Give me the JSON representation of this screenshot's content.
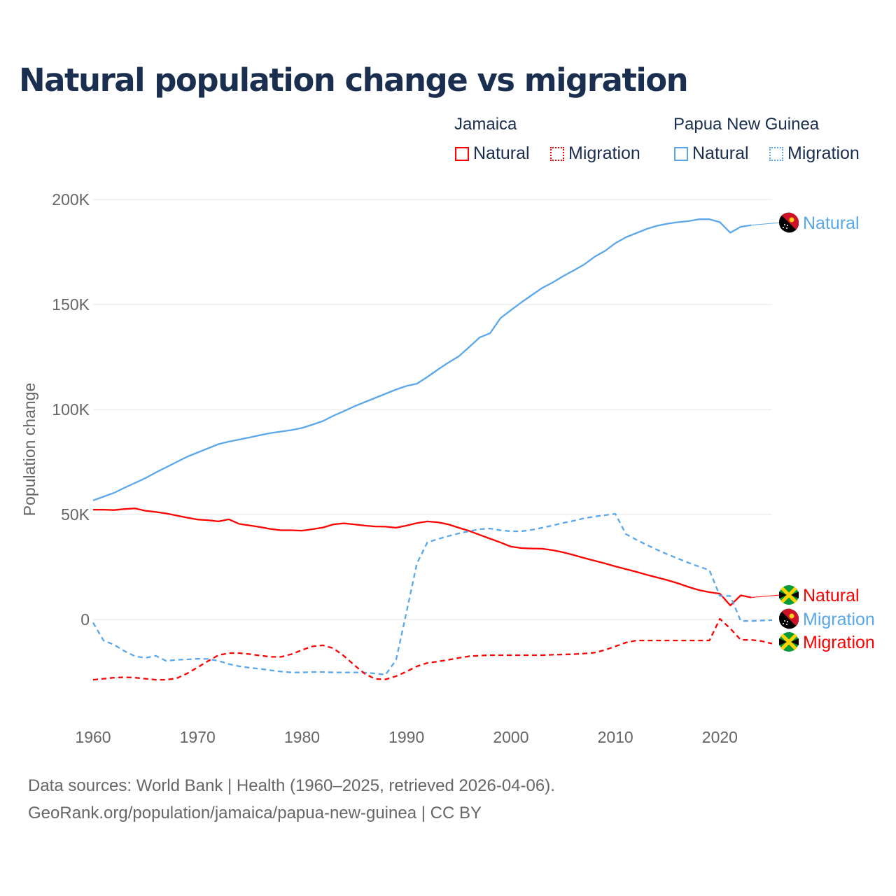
{
  "title": "Natural population change vs migration",
  "legend": {
    "groups": [
      {
        "name": "Jamaica",
        "items": [
          {
            "label": "Natural",
            "color": "#ff0000",
            "style": "solid"
          },
          {
            "label": "Migration",
            "color": "#ff0000",
            "style": "dotted"
          }
        ]
      },
      {
        "name": "Papua New Guinea",
        "items": [
          {
            "label": "Natural",
            "color": "#5aa7ec",
            "style": "solid"
          },
          {
            "label": "Migration",
            "color": "#5aa7ec",
            "style": "dotted"
          }
        ]
      }
    ]
  },
  "footer": {
    "line1": "Data sources: World Bank | Health (1960–2025, retrieved 2026-04-06).",
    "line2": "GeoRank.org/population/jamaica/papua-new-guinea | CC BY"
  },
  "chart_data": {
    "type": "line",
    "title": "Natural population change vs migration",
    "xlabel": "",
    "ylabel": "Population change",
    "xlim": [
      1960,
      2025
    ],
    "ylim": [
      -40000,
      200000
    ],
    "xticks": [
      1960,
      1970,
      1980,
      1990,
      2000,
      2010,
      2020
    ],
    "xtick_labels": [
      "1960",
      "1970",
      "1980",
      "1990",
      "2000",
      "2010",
      "2020"
    ],
    "yticks": [
      0,
      50000,
      100000,
      150000,
      200000
    ],
    "ytick_labels": [
      "0",
      "50K",
      "100K",
      "150K",
      "200K"
    ],
    "grid": true,
    "series": [
      {
        "name": "Papua New Guinea Natural",
        "end_label": "Natural",
        "country": "png",
        "color": "#5aa7ec",
        "dash": false,
        "start": 1960,
        "values": [
          56.7,
          58.5,
          60.3,
          62.7,
          65,
          67.3,
          70,
          72.5,
          75,
          77.5,
          79.5,
          81.5,
          83.5,
          84.7,
          85.7,
          86.7,
          87.8,
          88.8,
          89.5,
          90.2,
          91.2,
          92.8,
          94.5,
          97,
          99.2,
          101.5,
          103.5,
          105.5,
          107.5,
          109.5,
          111.2,
          112.3,
          115.5,
          119,
          122.3,
          125.3,
          129.7,
          134.3,
          136.3,
          143.5,
          147.3,
          151,
          154.5,
          157.9,
          160.5,
          163.5,
          166.2,
          169,
          172.7,
          175.5,
          179.2,
          182,
          184,
          186,
          187.5,
          188.5,
          189.2,
          189.7,
          190.6,
          190.6,
          189.2,
          184.2,
          187,
          187.8
        ]
      },
      {
        "name": "Jamaica Natural",
        "end_label": "Natural",
        "country": "jam",
        "color": "#ff0000",
        "dash": false,
        "start": 1960,
        "values": [
          52.3,
          52.3,
          52.1,
          52.6,
          52.9,
          51.8,
          51.2,
          50.5,
          49.5,
          48.5,
          47.6,
          47.3,
          46.7,
          47.7,
          45.5,
          44.8,
          44,
          43.1,
          42.5,
          42.5,
          42.3,
          43,
          43.8,
          45.3,
          45.8,
          45.3,
          44.7,
          44.3,
          44.2,
          43.7,
          44.7,
          45.9,
          46.7,
          46.3,
          45.3,
          43.7,
          42.2,
          40.3,
          38.5,
          36.7,
          34.7,
          34,
          33.8,
          33.7,
          33,
          32,
          30.7,
          29.3,
          28,
          26.7,
          25.3,
          24,
          22.7,
          21.3,
          20,
          18.7,
          17.2,
          15.5,
          14,
          13,
          12.3,
          6.7,
          11.5,
          10.5
        ]
      },
      {
        "name": "Papua New Guinea Migration",
        "end_label": "Migration",
        "country": "png",
        "color": "#5aa7ec",
        "dash": true,
        "start": 1960,
        "values": [
          -1.5,
          -10,
          -12,
          -15,
          -17.5,
          -18.3,
          -17.3,
          -19.7,
          -19.2,
          -19,
          -18.7,
          -18.8,
          -19.7,
          -21.2,
          -22.3,
          -23,
          -23.5,
          -24.2,
          -24.8,
          -25.2,
          -25.2,
          -25,
          -25,
          -25.2,
          -25.2,
          -25.2,
          -25.3,
          -25.7,
          -26.3,
          -19.3,
          3.5,
          26.7,
          36.7,
          38.3,
          39.7,
          41,
          42,
          43,
          43.3,
          42.5,
          42,
          42,
          42.7,
          43.7,
          44.8,
          46,
          47,
          48.2,
          49,
          49.7,
          50.3,
          40.7,
          38,
          35.5,
          33.2,
          31,
          29,
          27,
          25.2,
          23.5,
          11.2,
          11.2,
          -0.7,
          -0.7,
          -0.5,
          -0.3
        ]
      },
      {
        "name": "Jamaica Migration",
        "end_label": "Migration",
        "country": "jam",
        "color": "#ff0000",
        "dash": true,
        "start": 1960,
        "values": [
          -28.7,
          -28.2,
          -27.7,
          -27.5,
          -27.7,
          -28.2,
          -28.7,
          -28.7,
          -28,
          -25.7,
          -22.8,
          -19.8,
          -17,
          -16,
          -16,
          -16.5,
          -17.2,
          -17.8,
          -17.8,
          -16.5,
          -14.5,
          -12.8,
          -12.3,
          -13.7,
          -17.3,
          -21.7,
          -25.8,
          -28.3,
          -28.5,
          -27,
          -24.8,
          -22.3,
          -20.7,
          -20,
          -19.2,
          -18.3,
          -17.5,
          -17.2,
          -17,
          -17,
          -17,
          -17,
          -17,
          -17,
          -16.8,
          -16.7,
          -16.5,
          -16.2,
          -15.8,
          -14.5,
          -12.8,
          -11,
          -10,
          -10,
          -10,
          -10,
          -10,
          -10,
          -10,
          -10,
          0.3,
          -4.3,
          -9.7,
          -9.7,
          -10.3,
          -11.5
        ]
      }
    ],
    "value_unit": "thousands"
  }
}
